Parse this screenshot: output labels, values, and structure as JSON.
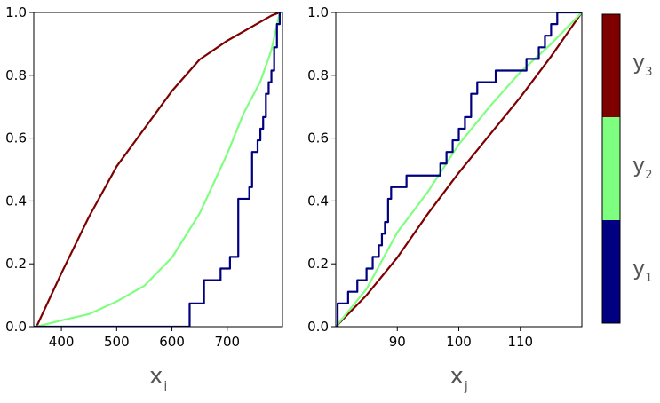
{
  "colors": {
    "y1": "#000080",
    "y2": "#7fff7f",
    "y3": "#7f0000"
  },
  "colorbar": {
    "labels": [
      {
        "main": "y",
        "sub": "3",
        "color": "#7f0000"
      },
      {
        "main": "y",
        "sub": "2",
        "color": "#7fff7f"
      },
      {
        "main": "y",
        "sub": "1",
        "color": "#000080"
      }
    ]
  },
  "chart_data": [
    {
      "type": "line",
      "title": "",
      "xlabel": {
        "main": "x",
        "sub": "i"
      },
      "ylabel": "",
      "xlim": [
        350,
        800
      ],
      "ylim": [
        0,
        1
      ],
      "xticks": [
        400,
        500,
        600,
        700
      ],
      "yticks": [
        0.0,
        0.2,
        0.4,
        0.6,
        0.8,
        1.0
      ],
      "xtick_labels": [
        "400",
        "500",
        "600",
        "700"
      ],
      "ytick_labels": [
        "0.0",
        "0.2",
        "0.4",
        "0.6",
        "0.8",
        "1.0"
      ],
      "grid": false,
      "series": [
        {
          "key": "y3",
          "color": "#7f0000",
          "step": false,
          "x": [
            355,
            400,
            450,
            500,
            550,
            600,
            650,
            700,
            750,
            780,
            795
          ],
          "y": [
            0.0,
            0.17,
            0.35,
            0.51,
            0.63,
            0.75,
            0.85,
            0.91,
            0.96,
            0.99,
            1.0
          ]
        },
        {
          "key": "y2",
          "color": "#7fff7f",
          "step": false,
          "x": [
            355,
            400,
            450,
            500,
            550,
            600,
            650,
            700,
            730,
            760,
            780,
            795
          ],
          "y": [
            0.0,
            0.02,
            0.04,
            0.08,
            0.13,
            0.22,
            0.36,
            0.55,
            0.68,
            0.78,
            0.88,
            1.0
          ]
        },
        {
          "key": "y1",
          "color": "#000080",
          "step": true,
          "x": [
            350,
            632,
            632,
            658,
            688,
            705,
            720,
            740,
            745,
            755,
            760,
            765,
            770,
            775,
            780,
            785,
            790,
            795
          ],
          "y": [
            0.0,
            0.0,
            0.074,
            0.148,
            0.185,
            0.222,
            0.407,
            0.444,
            0.556,
            0.593,
            0.63,
            0.667,
            0.741,
            0.778,
            0.815,
            0.889,
            0.963,
            1.0
          ]
        }
      ]
    },
    {
      "type": "line",
      "title": "",
      "xlabel": {
        "main": "x",
        "sub": "j"
      },
      "ylabel": "",
      "xlim": [
        80,
        120
      ],
      "ylim": [
        0,
        1
      ],
      "xticks": [
        90,
        100,
        110
      ],
      "yticks": [
        0.0,
        0.2,
        0.4,
        0.6,
        0.8,
        1.0
      ],
      "xtick_labels": [
        "90",
        "100",
        "110"
      ],
      "ytick_labels": [
        "0.0",
        "0.2",
        "0.4",
        "0.6",
        "0.8",
        "1.0"
      ],
      "grid": false,
      "series": [
        {
          "key": "y3",
          "color": "#7f0000",
          "step": false,
          "x": [
            80,
            85,
            90,
            95,
            100,
            105,
            110,
            115,
            120
          ],
          "y": [
            0.0,
            0.1,
            0.22,
            0.36,
            0.49,
            0.61,
            0.73,
            0.86,
            1.0
          ]
        },
        {
          "key": "y2",
          "color": "#7fff7f",
          "step": false,
          "x": [
            80,
            85,
            90,
            95,
            100,
            105,
            110,
            115,
            120
          ],
          "y": [
            0.0,
            0.12,
            0.3,
            0.43,
            0.58,
            0.7,
            0.81,
            0.9,
            1.0
          ]
        },
        {
          "key": "y1",
          "color": "#000080",
          "step": true,
          "x": [
            80,
            80.3,
            82,
            83.5,
            85,
            86,
            87,
            87.5,
            88,
            88.5,
            89,
            91.5,
            97,
            98,
            99,
            100,
            101,
            102,
            103,
            106,
            109,
            111,
            113,
            114,
            115,
            116,
            120
          ],
          "y": [
            0.0,
            0.074,
            0.111,
            0.148,
            0.185,
            0.222,
            0.259,
            0.296,
            0.333,
            0.407,
            0.444,
            0.481,
            0.519,
            0.556,
            0.593,
            0.63,
            0.667,
            0.741,
            0.778,
            0.815,
            0.815,
            0.852,
            0.889,
            0.926,
            0.963,
            1.0,
            1.0
          ]
        }
      ]
    }
  ]
}
